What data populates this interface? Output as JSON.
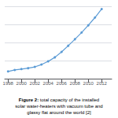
{
  "chart_data": {
    "type": "line",
    "x": [
      1998,
      1999,
      2000,
      2001,
      2002,
      2003,
      2004,
      2005,
      2006,
      2007,
      2008,
      2009,
      2010,
      2011,
      2012
    ],
    "values": [
      40,
      48,
      53,
      58,
      65,
      78,
      96,
      118,
      148,
      182,
      218,
      255,
      295,
      338,
      385
    ],
    "color": "#5b9bd5",
    "marker": "circle",
    "xlim": [
      1997.5,
      2013.5
    ],
    "xticks": [
      1998,
      2000,
      2002,
      2004,
      2006,
      2008,
      2010,
      2012
    ],
    "ylim": [
      0,
      400
    ],
    "yticks": [
      0,
      100,
      200,
      300,
      400
    ],
    "grid": true,
    "tick_labels": "x",
    "annotations": [
      "Figure 2:",
      "total capacity of the installed",
      "solar water-heaters with vacuum tube and",
      "glassy flat around the world [2]"
    ]
  }
}
